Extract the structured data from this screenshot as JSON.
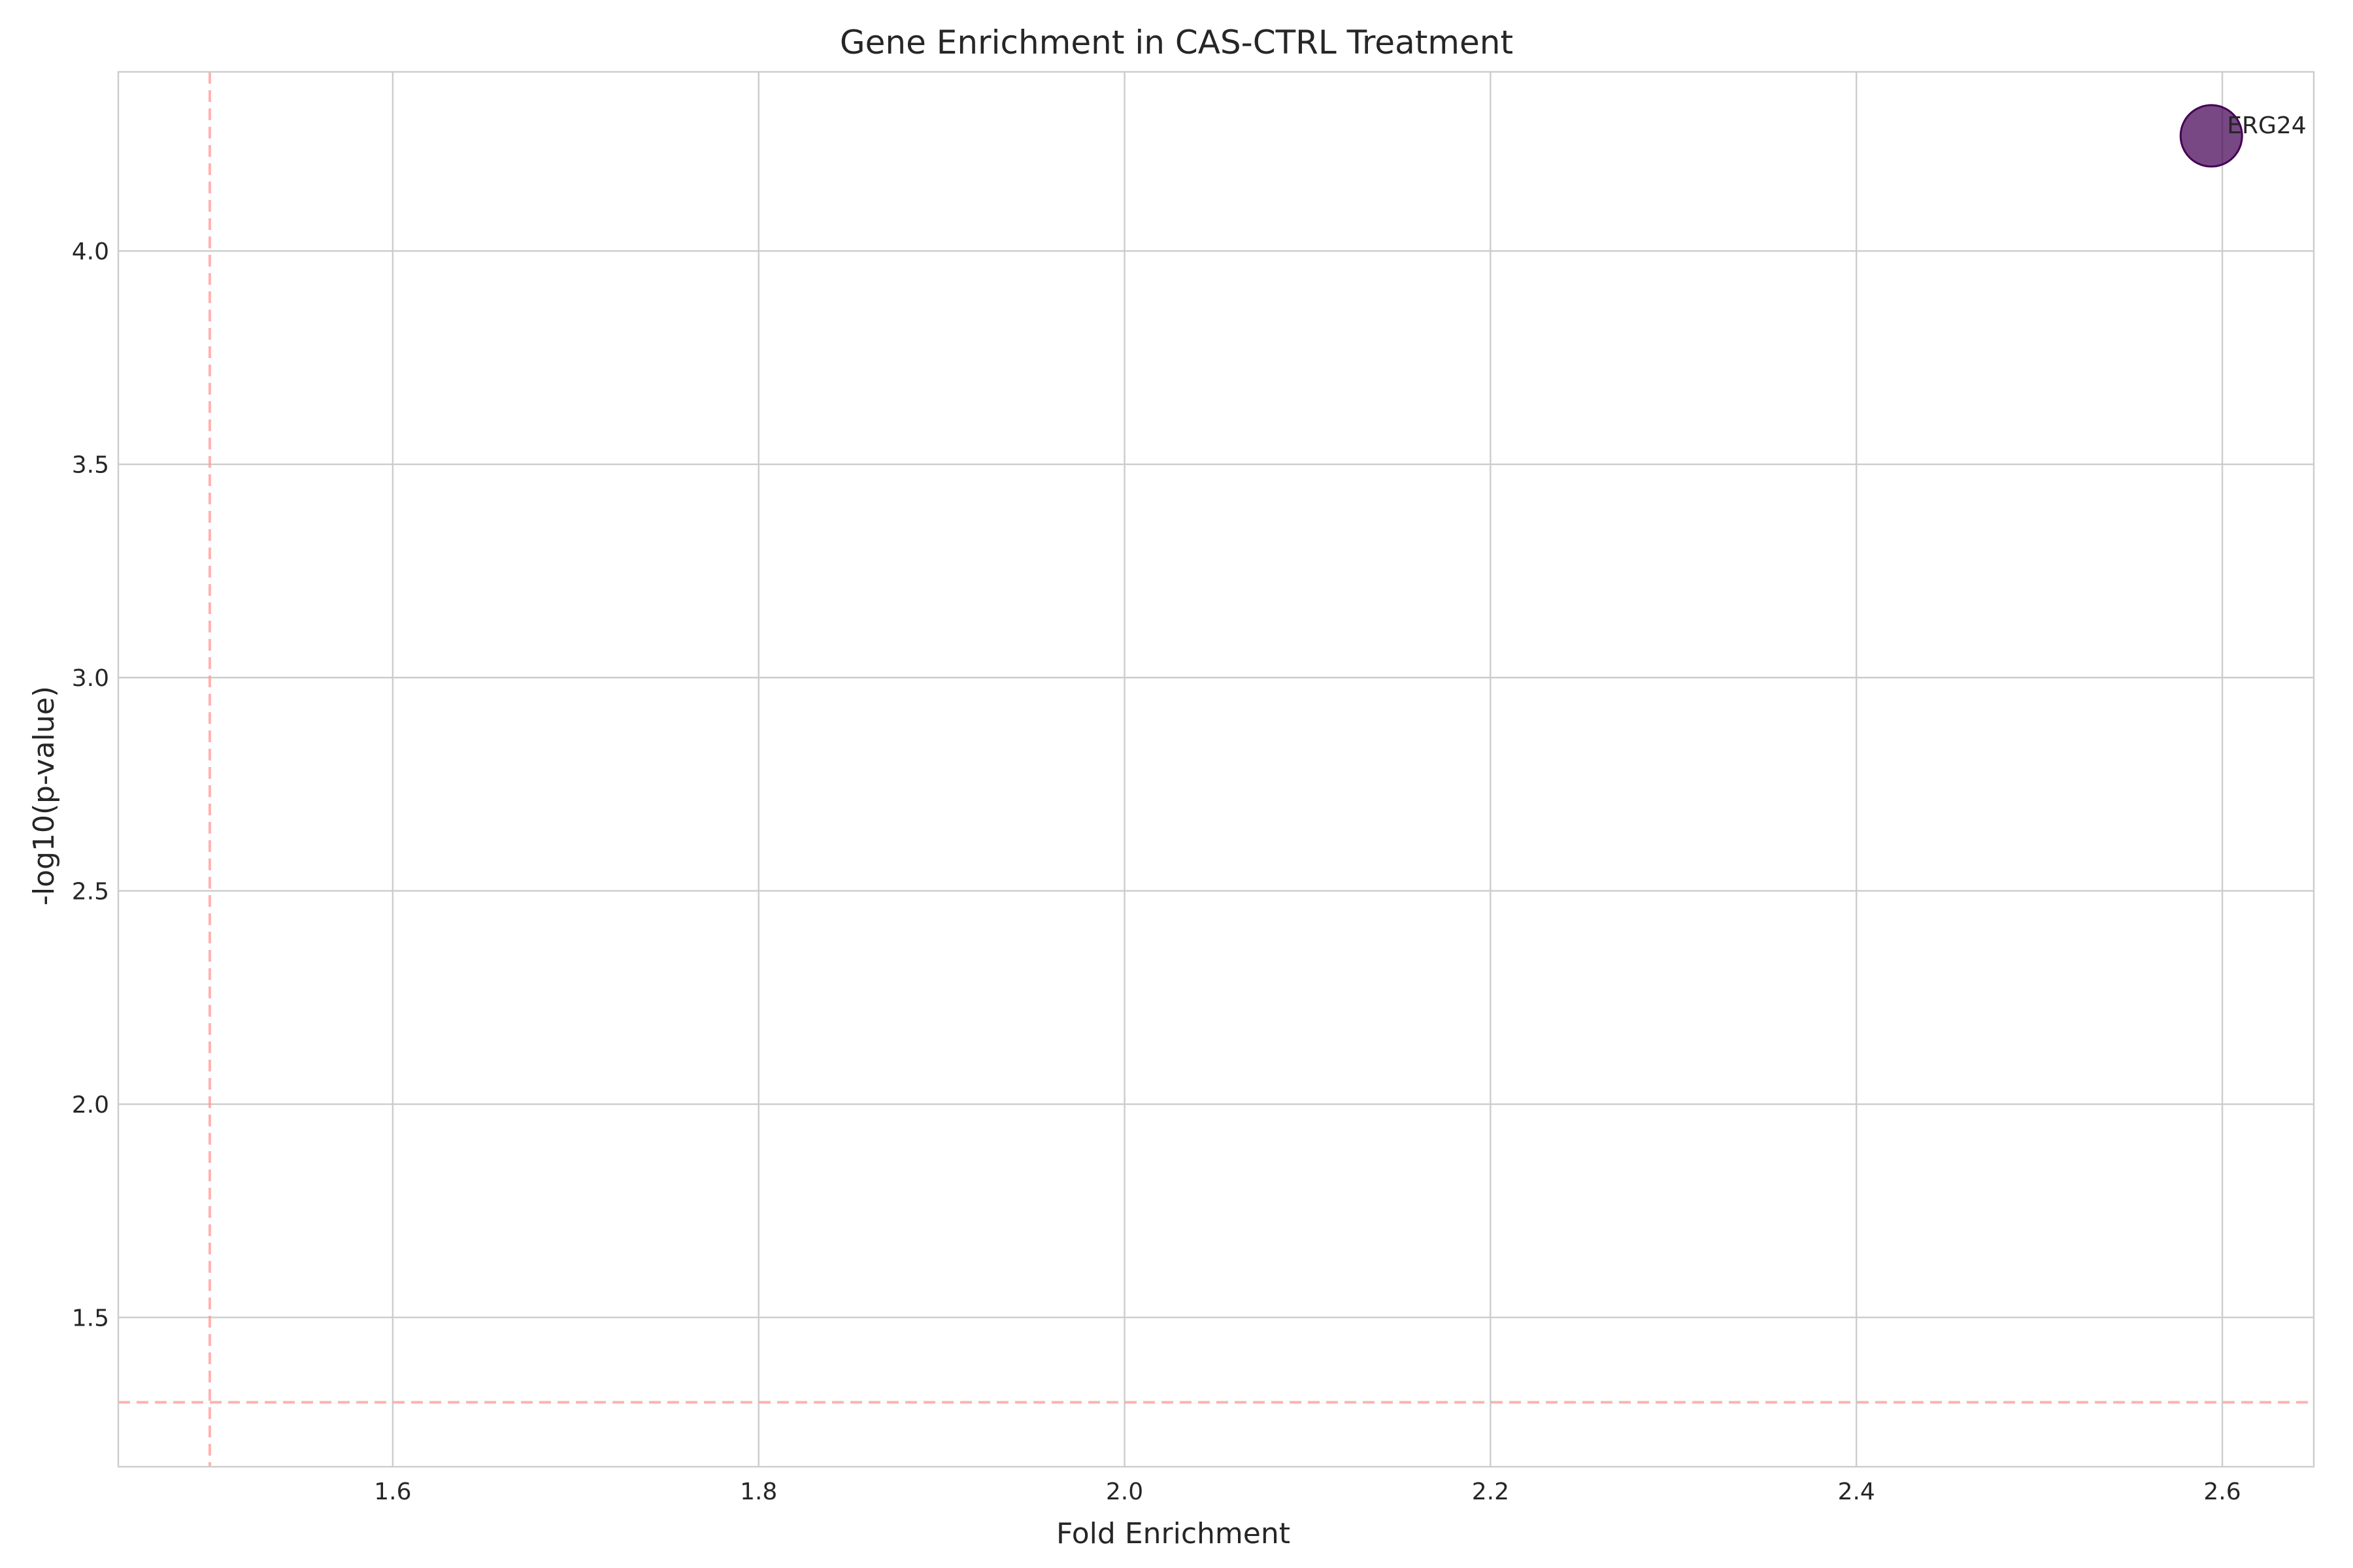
{
  "chart_data": {
    "type": "scatter",
    "title": "Gene Enrichment in CAS-CTRL Treatment",
    "xlabel": "Fold Enrichment",
    "ylabel": "-log10(p-value)",
    "xlim": [
      1.45,
      2.65
    ],
    "ylim": [
      1.15,
      4.42
    ],
    "xticks": [
      1.6,
      1.8,
      2.0,
      2.2,
      2.4,
      2.6
    ],
    "xtick_labels": [
      "1.6",
      "1.8",
      "2.0",
      "2.2",
      "2.4",
      "2.6"
    ],
    "yticks": [
      1.5,
      2.0,
      2.5,
      3.0,
      3.5,
      4.0
    ],
    "ytick_labels": [
      "1.5",
      "2.0",
      "2.5",
      "3.0",
      "3.5",
      "4.0"
    ],
    "grid": true,
    "threshold_lines": {
      "vertical_x": 1.5,
      "horizontal_y": 1.301,
      "color": "#ff9999",
      "style": "dashed"
    },
    "points": [
      {
        "label": "ERG24",
        "x": 2.594,
        "y": 4.27,
        "color": "#440154"
      }
    ]
  }
}
